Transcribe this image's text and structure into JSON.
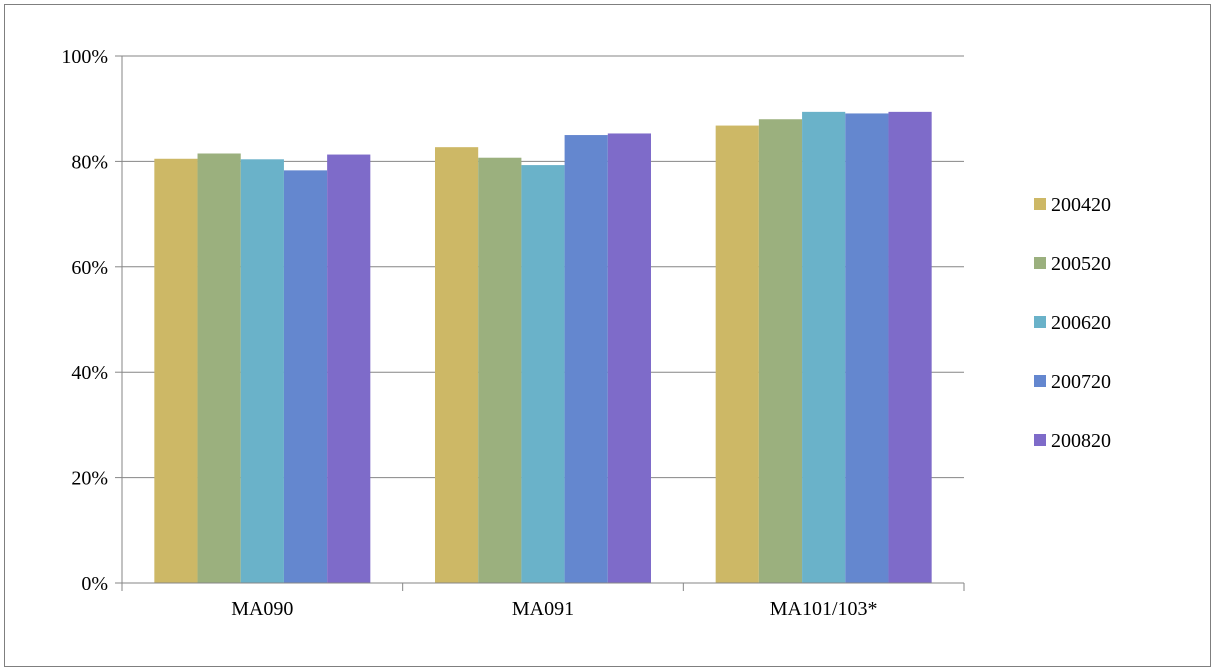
{
  "chart_data": {
    "type": "bar",
    "categories": [
      "MA090",
      "MA091",
      "MA101/103*"
    ],
    "series": [
      {
        "name": "200420",
        "color": "#CDB866",
        "values": [
          80.5,
          82.7,
          86.8
        ]
      },
      {
        "name": "200520",
        "color": "#9BB07E",
        "values": [
          81.5,
          80.7,
          88.0
        ]
      },
      {
        "name": "200620",
        "color": "#6AB2C9",
        "values": [
          80.4,
          79.3,
          89.4
        ]
      },
      {
        "name": "200720",
        "color": "#6487CF",
        "values": [
          78.3,
          85.0,
          89.1
        ]
      },
      {
        "name": "200820",
        "color": "#7E6BC9",
        "values": [
          81.3,
          85.3,
          89.4
        ]
      }
    ],
    "yticks": [
      "0%",
      "20%",
      "40%",
      "60%",
      "80%",
      "100%"
    ],
    "ylim": [
      0,
      100
    ],
    "grid": true,
    "legend_position": "right"
  }
}
